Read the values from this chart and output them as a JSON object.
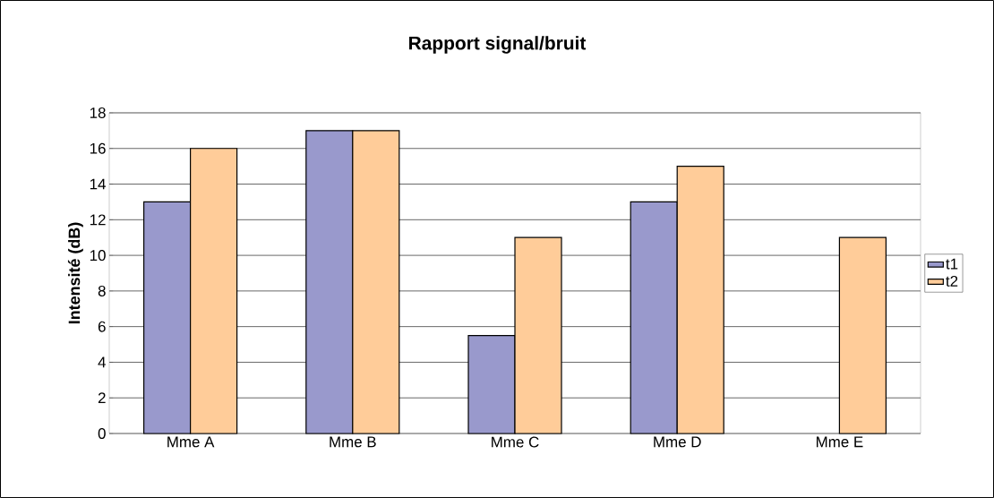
{
  "chart_data": {
    "type": "bar",
    "title": "Rapport signal/bruit",
    "ylabel": "Intensité (dB)",
    "categories": [
      "Mme A",
      "Mme B",
      "Mme C",
      "Mme D",
      "Mme E"
    ],
    "series": [
      {
        "name": "t1",
        "color": "#9999cc",
        "values": [
          13,
          17,
          5.5,
          13,
          null
        ]
      },
      {
        "name": "t2",
        "color": "#ffcc99",
        "values": [
          16,
          17,
          11,
          15,
          11
        ]
      }
    ],
    "ylim": [
      0,
      18
    ],
    "yticks": [
      0,
      2,
      4,
      6,
      8,
      10,
      12,
      14,
      16,
      18
    ],
    "grid": "y",
    "legend": "right"
  }
}
